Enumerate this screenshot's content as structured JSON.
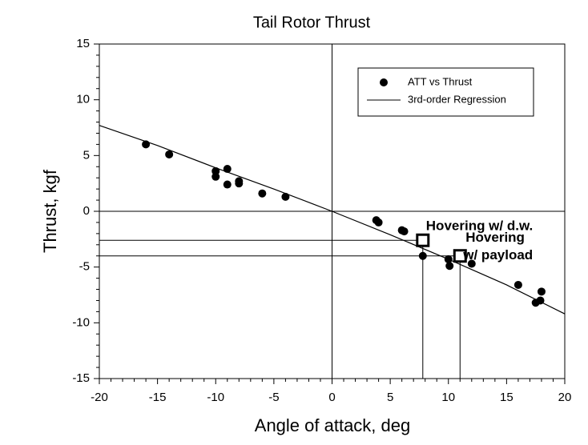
{
  "chart_data": {
    "type": "scatter",
    "title": "Tail Rotor Thrust",
    "x_label": "Angle of attack, deg",
    "y_label": "Thrust, kgf",
    "xlim": [
      -20,
      20
    ],
    "ylim": [
      -15,
      15
    ],
    "xticks": [
      -20,
      -15,
      -10,
      -5,
      0,
      5,
      10,
      15,
      20
    ],
    "yticks": [
      -15,
      -10,
      -5,
      0,
      5,
      10,
      15
    ],
    "legend": "top-right",
    "series": [
      {
        "name": "ATT vs Thrust",
        "style": "marker",
        "color": "#000000",
        "x": [
          -16,
          -14,
          -10,
          -10,
          -9,
          -9,
          -8,
          -8,
          -6,
          -4,
          3.8,
          4,
          6,
          6.2,
          7.8,
          10,
          10.1,
          12,
          16,
          17.5,
          17.9,
          18
        ],
        "values": [
          6,
          5.1,
          3.6,
          3.1,
          3.8,
          2.4,
          2.7,
          2.5,
          1.6,
          1.3,
          -0.8,
          -1,
          -1.7,
          -1.8,
          -4,
          -4.3,
          -4.9,
          -4.7,
          -6.6,
          -8.2,
          -8,
          -7.2
        ]
      },
      {
        "name": "3rd-order Regression",
        "style": "line",
        "color": "#000000",
        "x": [
          -20,
          -15,
          -10,
          -5,
          0,
          5,
          10,
          15,
          20
        ],
        "values": [
          7.7,
          5.9,
          3.9,
          2,
          0,
          -2.1,
          -4.3,
          -6.6,
          -9.2
        ]
      }
    ],
    "annotations": [
      {
        "lines": [
          "Hovering w/ d.w."
        ],
        "x": 7.8,
        "y": -2.6
      },
      {
        "lines": [
          "Hovering",
          "w/ payload"
        ],
        "x": 11,
        "y": -4
      }
    ]
  }
}
